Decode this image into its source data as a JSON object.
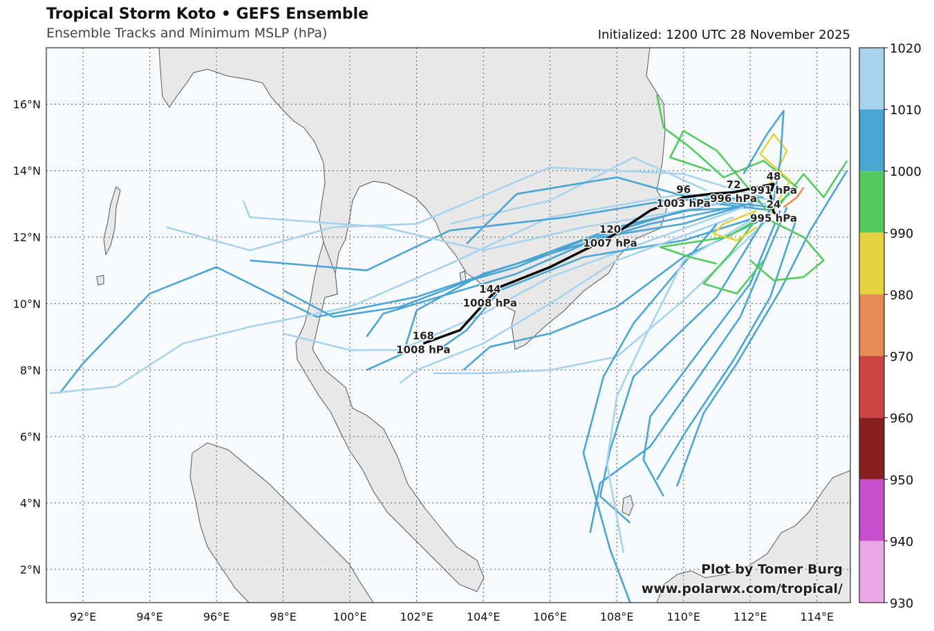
{
  "header": {
    "title": "Tropical Storm Koto • GEFS Ensemble",
    "subtitle": "Ensemble Tracks and Minimum MSLP (hPa)",
    "initialized": "Initialized: 1200 UTC 28 November 2025"
  },
  "map": {
    "lon_range": [
      90.9,
      115.0
    ],
    "lat_range": [
      1.0,
      17.7
    ],
    "lon_ticks": [
      "92°E",
      "94°E",
      "96°E",
      "98°E",
      "100°E",
      "102°E",
      "104°E",
      "106°E",
      "108°E",
      "110°E",
      "112°E",
      "114°E"
    ],
    "lat_ticks": [
      "2°N",
      "4°N",
      "6°N",
      "8°N",
      "10°N",
      "12°N",
      "14°N",
      "16°N"
    ],
    "ocean_color": "#f7fbfd",
    "land_color": "#e8e8e8"
  },
  "colorbar": {
    "levels": [
      "1020",
      "1010",
      "1000",
      "990",
      "980",
      "970",
      "960",
      "950",
      "940",
      "930"
    ],
    "colors": [
      "#a7d3ee",
      "#4ba5d3",
      "#52cb5c",
      "#e6d13f",
      "#e78c55",
      "#cc4444",
      "#8a1f1f",
      "#c94fcd",
      "#e9a7e8"
    ]
  },
  "mean_track": {
    "points": [
      {
        "lon": 112.7,
        "lat": 13.6,
        "label": "48",
        "pressure": "991 hPa"
      },
      {
        "lon": 112.7,
        "lat": 12.75,
        "label": "24",
        "pressure": "995 hPa"
      },
      {
        "lon": 111.5,
        "lat": 13.35,
        "label": "72",
        "pressure": "996 hPa"
      },
      {
        "lon": 110.0,
        "lat": 13.2,
        "label": "96",
        "pressure": "1003 hPa"
      },
      {
        "lon": 107.8,
        "lat": 12.0,
        "label": "120",
        "pressure": "1007 hPa"
      },
      {
        "lon": 104.2,
        "lat": 10.2,
        "label": "144",
        "pressure": "1008 hPa"
      },
      {
        "lon": 102.2,
        "lat": 8.8,
        "label": "168",
        "pressure": "1008 hPa"
      }
    ]
  },
  "credit": {
    "line1": "Plot by Tomer Burg",
    "line2": "www.polarwx.com/tropical/"
  }
}
